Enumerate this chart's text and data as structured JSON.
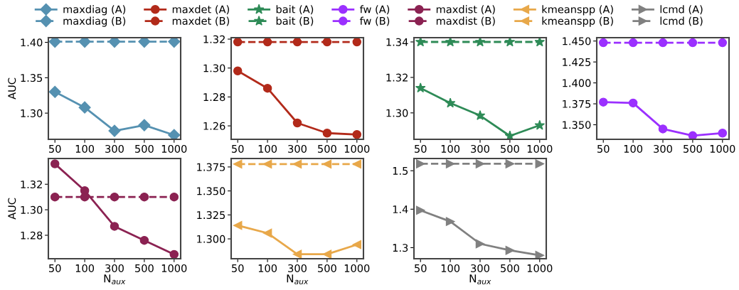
{
  "chart_data": [
    {
      "type": "line",
      "categories": [
        "50",
        "100",
        "300",
        "500",
        "1000"
      ],
      "ylabel": "AUC",
      "ylim": [
        1.263,
        1.4066
      ],
      "yticks": [
        {
          "value": 1.3,
          "label": "1.30"
        },
        {
          "value": 1.35,
          "label": "1.35"
        },
        {
          "value": 1.4,
          "label": "1.40"
        }
      ],
      "legend": "top",
      "grid": false,
      "series": [
        {
          "name": "maxdiag (A)",
          "color": "#5591b1",
          "marker": "diamond",
          "line_style": "solid",
          "values": [
            1.33,
            1.308,
            1.275,
            1.283,
            1.269
          ]
        },
        {
          "name": "maxdiag (B)",
          "color": "#5591b1",
          "marker": "diamond",
          "line_style": "dashed",
          "values": [
            1.401,
            1.401,
            1.401,
            1.401,
            1.401
          ]
        }
      ]
    },
    {
      "type": "line",
      "categories": [
        "50",
        "100",
        "300",
        "500",
        "1000"
      ],
      "ylim": [
        1.2507,
        1.321
      ],
      "yticks": [
        {
          "value": 1.26,
          "label": "1.26"
        },
        {
          "value": 1.28,
          "label": "1.28"
        },
        {
          "value": 1.3,
          "label": "1.30"
        },
        {
          "value": 1.32,
          "label": "1.32"
        }
      ],
      "legend": "top",
      "grid": false,
      "series": [
        {
          "name": "maxdet (A)",
          "color": "#b22a1a",
          "marker": "circle",
          "line_style": "solid",
          "values": [
            1.298,
            1.286,
            1.262,
            1.255,
            1.254
          ]
        },
        {
          "name": "maxdet (B)",
          "color": "#b22a1a",
          "marker": "circle",
          "line_style": "dashed",
          "values": [
            1.318,
            1.318,
            1.318,
            1.318,
            1.318
          ]
        }
      ]
    },
    {
      "type": "line",
      "categories": [
        "50",
        "100",
        "300",
        "500",
        "1000"
      ],
      "ylim": [
        1.2851,
        1.3424
      ],
      "yticks": [
        {
          "value": 1.3,
          "label": "1.30"
        },
        {
          "value": 1.32,
          "label": "1.32"
        },
        {
          "value": 1.34,
          "label": "1.34"
        }
      ],
      "legend": "top",
      "grid": false,
      "series": [
        {
          "name": "bait (A)",
          "color": "#2e8b57",
          "marker": "star",
          "line_style": "solid",
          "values": [
            1.314,
            1.3055,
            1.2985,
            1.287,
            1.293
          ]
        },
        {
          "name": "bait (B)",
          "color": "#2e8b57",
          "marker": "star",
          "line_style": "dashed",
          "values": [
            1.34,
            1.34,
            1.34,
            1.34,
            1.34
          ]
        }
      ]
    },
    {
      "type": "line",
      "categories": [
        "50",
        "100",
        "300",
        "500",
        "1000"
      ],
      "ylim": [
        1.3326,
        1.454
      ],
      "yticks": [
        {
          "value": 1.35,
          "label": "1.350"
        },
        {
          "value": 1.375,
          "label": "1.375"
        },
        {
          "value": 1.4,
          "label": "1.400"
        },
        {
          "value": 1.425,
          "label": "1.425"
        },
        {
          "value": 1.45,
          "label": "1.450"
        }
      ],
      "legend": "top",
      "grid": false,
      "series": [
        {
          "name": "fw (A)",
          "color": "#9b30ff",
          "marker": "circle",
          "line_style": "solid",
          "values": [
            1.377,
            1.376,
            1.345,
            1.337,
            1.34
          ]
        },
        {
          "name": "fw (B)",
          "color": "#9b30ff",
          "marker": "circle",
          "line_style": "dashed",
          "values": [
            1.448,
            1.448,
            1.448,
            1.448,
            1.448
          ]
        }
      ]
    },
    {
      "type": "line",
      "categories": [
        "50",
        "100",
        "300",
        "500",
        "1000"
      ],
      "xlabel": "N$_{aux}$",
      "ylabel": "AUC",
      "ylim": [
        1.2616,
        1.3402
      ],
      "yticks": [
        {
          "value": 1.28,
          "label": "1.28"
        },
        {
          "value": 1.3,
          "label": "1.30"
        },
        {
          "value": 1.32,
          "label": "1.32"
        }
      ],
      "legend": "top",
      "grid": false,
      "series": [
        {
          "name": "maxdist (A)",
          "color": "#8b2252",
          "marker": "circle",
          "line_style": "solid",
          "values": [
            1.336,
            1.315,
            1.287,
            1.276,
            1.265
          ]
        },
        {
          "name": "maxdist (B)",
          "color": "#8b2252",
          "marker": "circle",
          "line_style": "dashed",
          "values": [
            1.31,
            1.31,
            1.31,
            1.31,
            1.31
          ]
        }
      ]
    },
    {
      "type": "line",
      "categories": [
        "50",
        "100",
        "300",
        "500",
        "1000"
      ],
      "xlabel": "N$_{aux}$",
      "ylim": [
        1.2793,
        1.3838
      ],
      "yticks": [
        {
          "value": 1.3,
          "label": "1.300"
        },
        {
          "value": 1.325,
          "label": "1.325"
        },
        {
          "value": 1.35,
          "label": "1.350"
        },
        {
          "value": 1.375,
          "label": "1.375"
        }
      ],
      "legend": "top",
      "grid": false,
      "series": [
        {
          "name": "kmeanspp (A)",
          "color": "#e8a84a",
          "marker": "triangle-left",
          "line_style": "solid",
          "values": [
            1.314,
            1.306,
            1.284,
            1.284,
            1.294
          ]
        },
        {
          "name": "kmeanspp (B)",
          "color": "#e8a84a",
          "marker": "triangle-left",
          "line_style": "dashed",
          "values": [
            1.378,
            1.378,
            1.378,
            1.378,
            1.378
          ]
        }
      ]
    },
    {
      "type": "line",
      "categories": [
        "50",
        "100",
        "300",
        "500",
        "1000"
      ],
      "xlabel": "N$_{aux}$",
      "ylim": [
        1.2712,
        1.5318
      ],
      "yticks": [
        {
          "value": 1.3,
          "label": "1.3"
        },
        {
          "value": 1.4,
          "label": "1.4"
        },
        {
          "value": 1.5,
          "label": "1.5"
        }
      ],
      "legend": "top",
      "grid": false,
      "series": [
        {
          "name": "lcmd (A)",
          "color": "#808080",
          "marker": "triangle-right",
          "line_style": "solid",
          "values": [
            1.397,
            1.368,
            1.31,
            1.293,
            1.28
          ]
        },
        {
          "name": "lcmd (B)",
          "color": "#808080",
          "marker": "triangle-right",
          "line_style": "dashed",
          "values": [
            1.518,
            1.518,
            1.518,
            1.518,
            1.518
          ]
        }
      ]
    }
  ]
}
